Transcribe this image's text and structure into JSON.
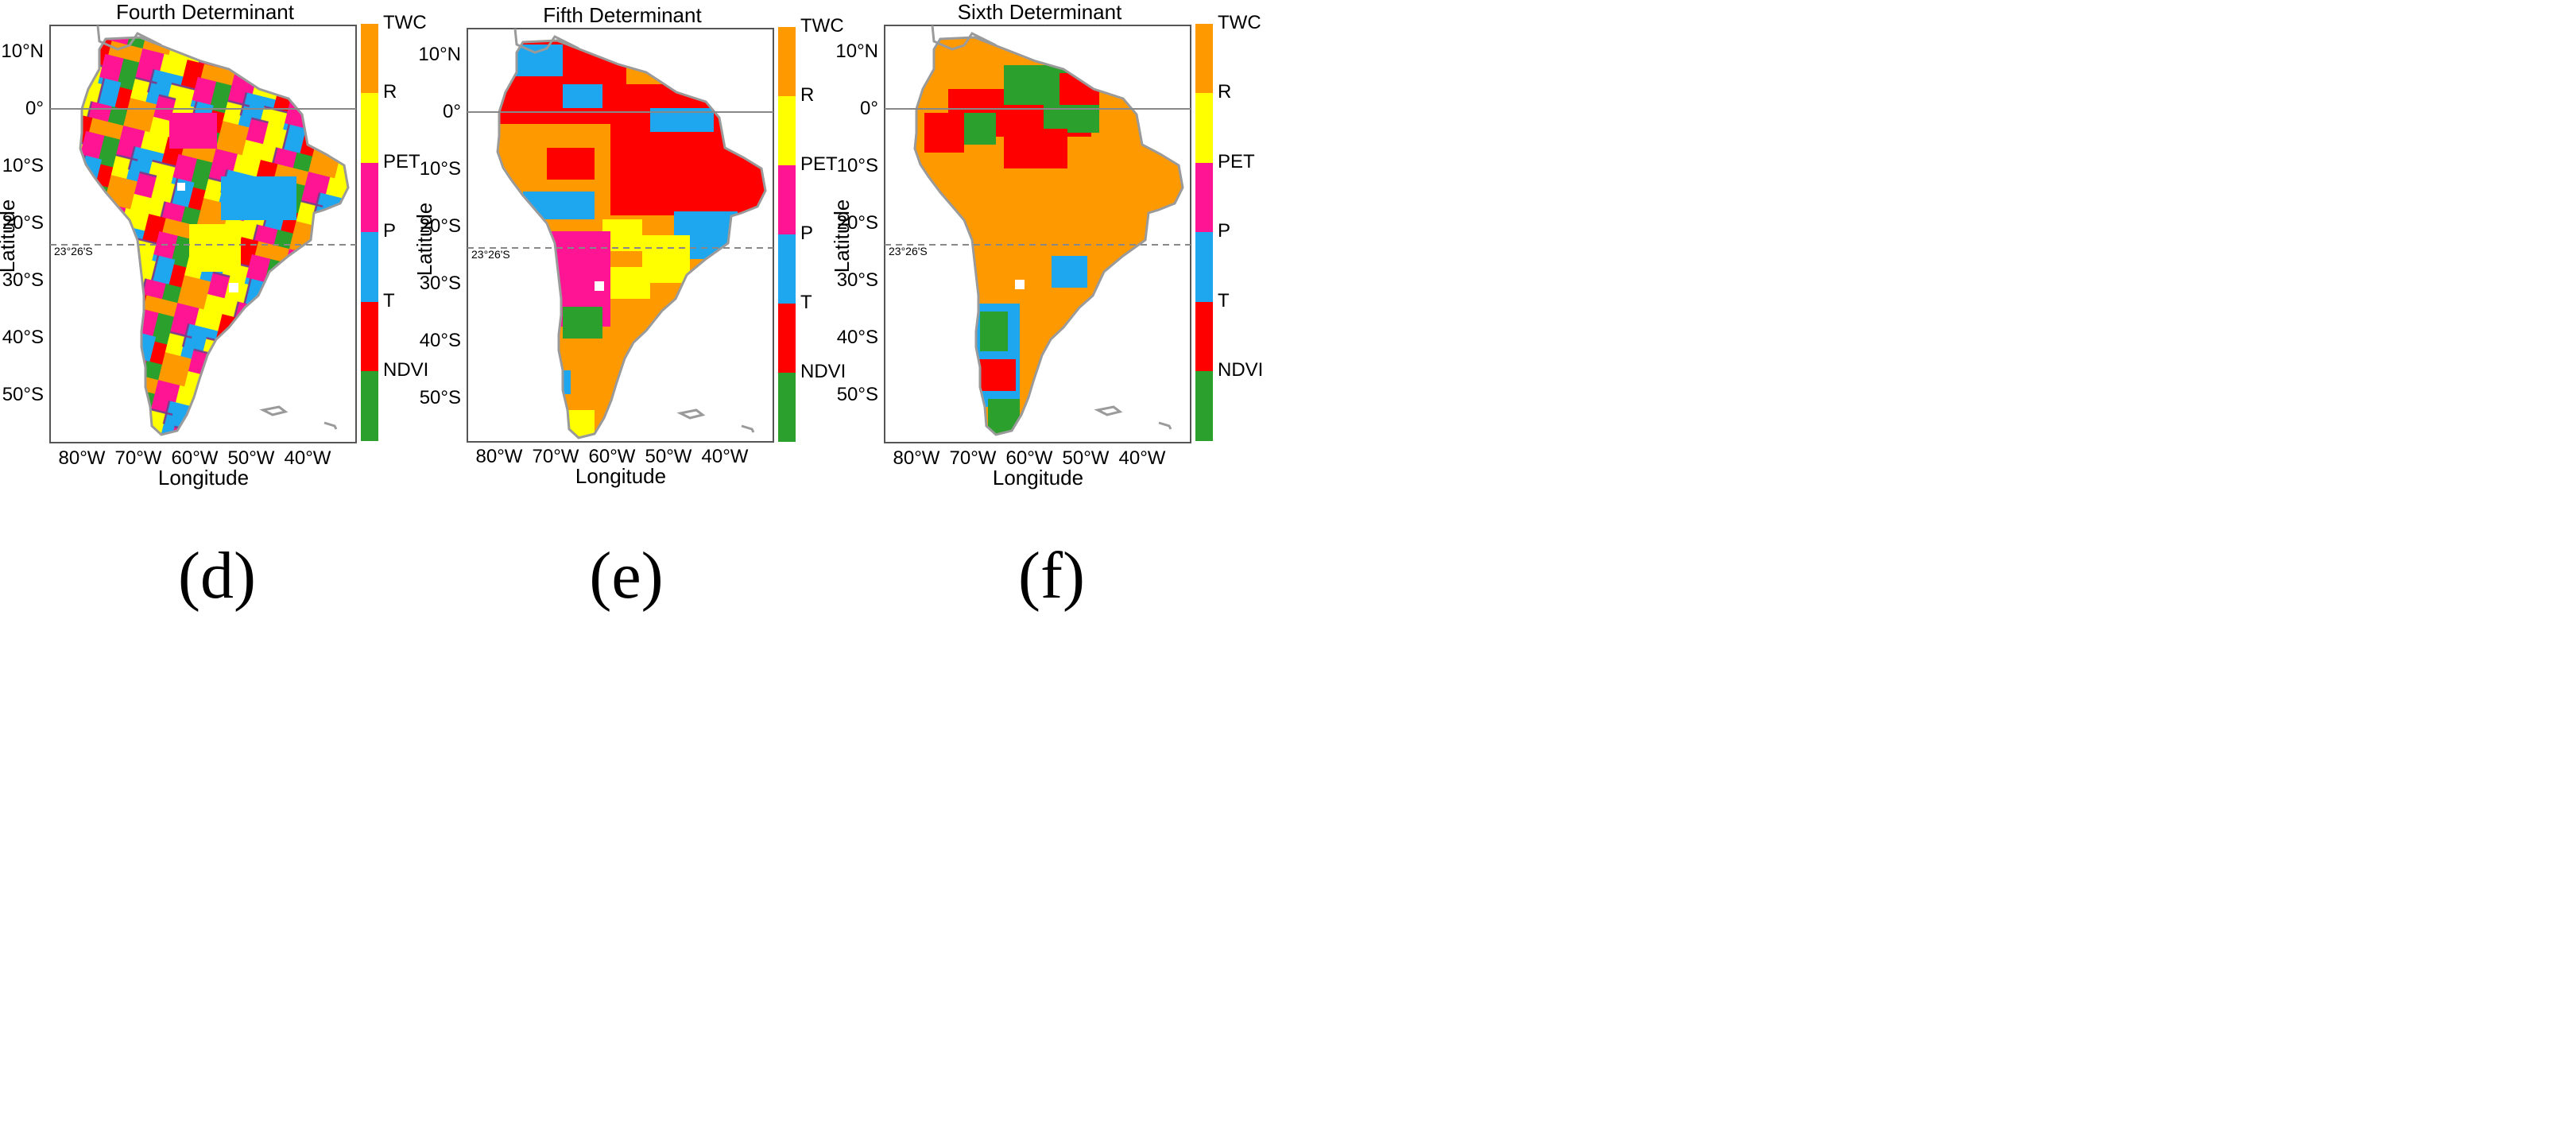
{
  "colors": {
    "NDVI": "#2ca02c",
    "T": "#ff0000",
    "P": "#1ea7ef",
    "PET": "#ff1493",
    "R": "#ffff00",
    "TWC": "#ff9900",
    "frame": "#555555",
    "coast": "#9a9a9a",
    "grid": "#888888",
    "patch_edge": "#7a3e8a"
  },
  "axes": {
    "xlabel": "Longitude",
    "ylabel": "Latitude",
    "x_ticks": [
      {
        "value": -80,
        "label": "80°W"
      },
      {
        "value": -70,
        "label": "70°W"
      },
      {
        "value": -60,
        "label": "60°W"
      },
      {
        "value": -50,
        "label": "50°W"
      },
      {
        "value": -40,
        "label": "40°W"
      }
    ],
    "y_ticks": [
      {
        "value": 10,
        "label": "10°N"
      },
      {
        "value": 0,
        "label": "0°"
      },
      {
        "value": -10,
        "label": "10°S"
      },
      {
        "value": -20,
        "label": "20°S"
      },
      {
        "value": -30,
        "label": "30°S"
      },
      {
        "value": -40,
        "label": "40°S"
      },
      {
        "value": -50,
        "label": "50°S"
      }
    ],
    "xlim": [
      -85,
      -33
    ],
    "ylim": [
      -58,
      15
    ],
    "equator_lat": 0,
    "tropic_lat": -23.43,
    "tropic_label": "23°26'S"
  },
  "legend": {
    "categories": [
      "NDVI",
      "T",
      "P",
      "PET",
      "R",
      "TWC"
    ]
  },
  "chart_data": [
    {
      "type": "map",
      "panel": "(d)",
      "title": "Fourth Determinant",
      "legend_categories": [
        "NDVI",
        "T",
        "P",
        "PET",
        "R",
        "TWC"
      ],
      "dominant_categories": [
        "P",
        "PET",
        "R",
        "T",
        "TWC",
        "NDVI"
      ],
      "description_of_pattern": "mixed mosaic"
    },
    {
      "type": "map",
      "panel": "(e)",
      "title": "Fifth Determinant",
      "legend_categories": [
        "NDVI",
        "T",
        "P",
        "PET",
        "R",
        "TWC"
      ],
      "dominant_categories": [
        "T",
        "TWC",
        "P",
        "R",
        "PET",
        "NDVI"
      ],
      "description_of_pattern": "red north-east, pink south-centre"
    },
    {
      "type": "map",
      "panel": "(f)",
      "title": "Sixth Determinant",
      "legend_categories": [
        "NDVI",
        "T",
        "P",
        "PET",
        "R",
        "TWC"
      ],
      "dominant_categories": [
        "TWC",
        "T",
        "NDVI",
        "P"
      ],
      "description_of_pattern": "orange dominated"
    }
  ]
}
